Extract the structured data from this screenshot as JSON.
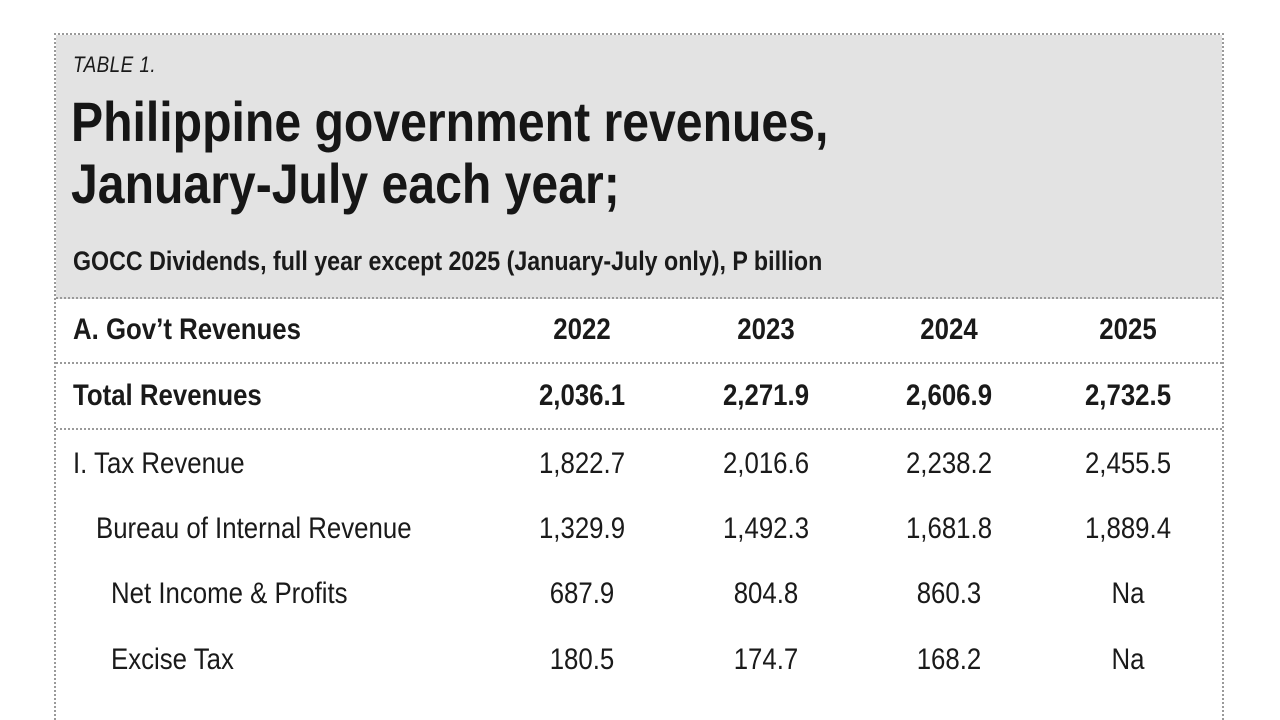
{
  "table": {
    "label": "TABLE 1.",
    "title_line1": "Philippine government revenues,",
    "title_line2": "January-July each year;",
    "subtitle": "GOCC Dividends, full year except 2025 (January-July only), P billion",
    "header": {
      "name": "A. Gov’t Revenues",
      "years": [
        "2022",
        "2023",
        "2024",
        "2025"
      ]
    },
    "rows": [
      {
        "name": "Total Revenues",
        "values": [
          "2,036.1",
          "2,271.9",
          "2,606.9",
          "2,732.5"
        ]
      },
      {
        "name": "I. Tax Revenue",
        "values": [
          "1,822.7",
          "2,016.6",
          "2,238.2",
          "2,455.5"
        ]
      },
      {
        "name": "Bureau of Internal Revenue",
        "values": [
          "1,329.9",
          "1,492.3",
          "1,681.8",
          "1,889.4"
        ]
      },
      {
        "name": "Net Income & Profits",
        "values": [
          "687.9",
          "804.8",
          "860.3",
          "Na"
        ]
      },
      {
        "name": "Excise Tax",
        "values": [
          "180.5",
          "174.7",
          "168.2",
          "Na"
        ]
      }
    ]
  }
}
